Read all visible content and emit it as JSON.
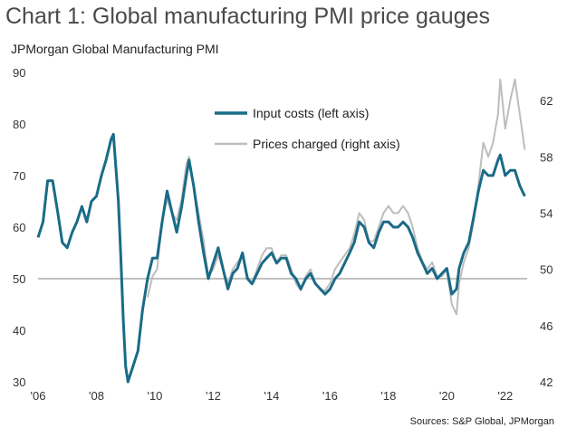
{
  "title": "Chart 1: Global manufacturing PMI price gauges",
  "subtitle": "JPMorgan Global Manufacturing PMI",
  "source": "Sources: S&P Global, JPMorgan",
  "colors": {
    "input": "#1a6b87",
    "prices": "#bdbdbd",
    "ref_line": "#aaaaaa"
  },
  "chart_data": {
    "type": "line",
    "title": "Chart 1: Global manufacturing PMI price gauges",
    "left_axis": {
      "ylim": [
        30,
        90
      ],
      "ticks": [
        "30",
        "40",
        "50",
        "60",
        "70",
        "80",
        "90"
      ]
    },
    "right_axis": {
      "ylim": [
        42,
        64
      ],
      "ticks": [
        "42",
        "46",
        "50",
        "54",
        "58",
        "62"
      ]
    },
    "x_range": [
      2006.0,
      2022.75
    ],
    "x_ticks": [
      {
        "value": 2006,
        "label": "'06"
      },
      {
        "value": 2008,
        "label": "'08"
      },
      {
        "value": 2010,
        "label": "'10"
      },
      {
        "value": 2012,
        "label": "'12"
      },
      {
        "value": 2014,
        "label": "'14"
      },
      {
        "value": 2016,
        "label": "'16"
      },
      {
        "value": 2018,
        "label": "'18"
      },
      {
        "value": 2020,
        "label": "'20"
      },
      {
        "value": 2022,
        "label": "'22"
      }
    ],
    "reference_line": 50,
    "legend_position": "top-right",
    "series": [
      {
        "name": "Input costs (left axis)",
        "axis": "left",
        "points": [
          [
            2006.0,
            58
          ],
          [
            2006.17,
            61
          ],
          [
            2006.33,
            69
          ],
          [
            2006.5,
            69
          ],
          [
            2006.67,
            63
          ],
          [
            2006.83,
            57
          ],
          [
            2007.0,
            56
          ],
          [
            2007.17,
            59
          ],
          [
            2007.33,
            61
          ],
          [
            2007.5,
            64
          ],
          [
            2007.67,
            61
          ],
          [
            2007.83,
            65
          ],
          [
            2008.0,
            66
          ],
          [
            2008.17,
            70
          ],
          [
            2008.33,
            73
          ],
          [
            2008.5,
            77
          ],
          [
            2008.58,
            78
          ],
          [
            2008.75,
            65
          ],
          [
            2008.83,
            55
          ],
          [
            2008.92,
            42
          ],
          [
            2009.0,
            33
          ],
          [
            2009.08,
            30
          ],
          [
            2009.25,
            33
          ],
          [
            2009.42,
            36
          ],
          [
            2009.58,
            44
          ],
          [
            2009.75,
            50
          ],
          [
            2009.92,
            54
          ],
          [
            2010.08,
            54
          ],
          [
            2010.25,
            61
          ],
          [
            2010.42,
            67
          ],
          [
            2010.58,
            63
          ],
          [
            2010.75,
            59
          ],
          [
            2010.92,
            64
          ],
          [
            2011.08,
            70
          ],
          [
            2011.17,
            73
          ],
          [
            2011.33,
            68
          ],
          [
            2011.5,
            61
          ],
          [
            2011.67,
            55
          ],
          [
            2011.83,
            50
          ],
          [
            2012.0,
            53
          ],
          [
            2012.17,
            56
          ],
          [
            2012.33,
            52
          ],
          [
            2012.5,
            48
          ],
          [
            2012.67,
            51
          ],
          [
            2012.83,
            52
          ],
          [
            2013.0,
            55
          ],
          [
            2013.17,
            50
          ],
          [
            2013.33,
            49
          ],
          [
            2013.5,
            51
          ],
          [
            2013.67,
            53
          ],
          [
            2013.83,
            54
          ],
          [
            2014.0,
            55
          ],
          [
            2014.17,
            53
          ],
          [
            2014.33,
            54
          ],
          [
            2014.5,
            54
          ],
          [
            2014.67,
            51
          ],
          [
            2014.83,
            50
          ],
          [
            2015.0,
            48
          ],
          [
            2015.17,
            50
          ],
          [
            2015.33,
            51
          ],
          [
            2015.5,
            49
          ],
          [
            2015.67,
            48
          ],
          [
            2015.83,
            47
          ],
          [
            2016.0,
            48
          ],
          [
            2016.17,
            50
          ],
          [
            2016.33,
            51
          ],
          [
            2016.5,
            53
          ],
          [
            2016.67,
            55
          ],
          [
            2016.83,
            57
          ],
          [
            2017.0,
            61
          ],
          [
            2017.17,
            60
          ],
          [
            2017.33,
            57
          ],
          [
            2017.5,
            56
          ],
          [
            2017.67,
            59
          ],
          [
            2017.83,
            61
          ],
          [
            2018.0,
            61
          ],
          [
            2018.17,
            60
          ],
          [
            2018.33,
            60
          ],
          [
            2018.5,
            61
          ],
          [
            2018.67,
            60
          ],
          [
            2018.83,
            58
          ],
          [
            2019.0,
            55
          ],
          [
            2019.17,
            53
          ],
          [
            2019.33,
            51
          ],
          [
            2019.5,
            52
          ],
          [
            2019.67,
            50
          ],
          [
            2019.83,
            51
          ],
          [
            2020.0,
            52
          ],
          [
            2020.17,
            47
          ],
          [
            2020.33,
            48
          ],
          [
            2020.42,
            52
          ],
          [
            2020.58,
            55
          ],
          [
            2020.75,
            57
          ],
          [
            2020.92,
            62
          ],
          [
            2021.08,
            67
          ],
          [
            2021.25,
            71
          ],
          [
            2021.42,
            70
          ],
          [
            2021.58,
            70
          ],
          [
            2021.75,
            73
          ],
          [
            2021.83,
            74
          ],
          [
            2022.0,
            70
          ],
          [
            2022.17,
            71
          ],
          [
            2022.33,
            71
          ],
          [
            2022.5,
            68
          ],
          [
            2022.67,
            66
          ]
        ]
      },
      {
        "name": "Prices charged (right axis)",
        "axis": "right",
        "points": [
          [
            2009.75,
            48
          ],
          [
            2009.92,
            49.5
          ],
          [
            2010.08,
            50
          ],
          [
            2010.25,
            53.5
          ],
          [
            2010.42,
            55
          ],
          [
            2010.58,
            54
          ],
          [
            2010.75,
            53.5
          ],
          [
            2010.92,
            55
          ],
          [
            2011.08,
            57.5
          ],
          [
            2011.17,
            58
          ],
          [
            2011.33,
            56
          ],
          [
            2011.5,
            54
          ],
          [
            2011.67,
            52
          ],
          [
            2011.83,
            49.5
          ],
          [
            2012.0,
            50
          ],
          [
            2012.17,
            51
          ],
          [
            2012.33,
            50
          ],
          [
            2012.5,
            49
          ],
          [
            2012.67,
            50
          ],
          [
            2012.83,
            50.5
          ],
          [
            2013.0,
            51
          ],
          [
            2013.17,
            49.5
          ],
          [
            2013.33,
            49
          ],
          [
            2013.5,
            50
          ],
          [
            2013.67,
            51
          ],
          [
            2013.83,
            51.5
          ],
          [
            2014.0,
            51.5
          ],
          [
            2014.17,
            50.5
          ],
          [
            2014.33,
            51
          ],
          [
            2014.5,
            51
          ],
          [
            2014.67,
            50
          ],
          [
            2014.83,
            49
          ],
          [
            2015.0,
            48.5
          ],
          [
            2015.17,
            49.5
          ],
          [
            2015.33,
            50
          ],
          [
            2015.5,
            49
          ],
          [
            2015.67,
            48.5
          ],
          [
            2015.83,
            48.5
          ],
          [
            2016.0,
            49
          ],
          [
            2016.17,
            50
          ],
          [
            2016.33,
            50.5
          ],
          [
            2016.5,
            51
          ],
          [
            2016.67,
            51.5
          ],
          [
            2016.83,
            52.5
          ],
          [
            2017.0,
            54
          ],
          [
            2017.17,
            53.5
          ],
          [
            2017.33,
            52
          ],
          [
            2017.5,
            52
          ],
          [
            2017.67,
            53
          ],
          [
            2017.83,
            54
          ],
          [
            2018.0,
            54.5
          ],
          [
            2018.17,
            54
          ],
          [
            2018.33,
            54
          ],
          [
            2018.5,
            54.5
          ],
          [
            2018.67,
            54
          ],
          [
            2018.83,
            53
          ],
          [
            2019.0,
            51.5
          ],
          [
            2019.17,
            50.5
          ],
          [
            2019.33,
            50
          ],
          [
            2019.5,
            50.5
          ],
          [
            2019.67,
            49.5
          ],
          [
            2019.83,
            49.5
          ],
          [
            2020.0,
            50
          ],
          [
            2020.17,
            47.5
          ],
          [
            2020.33,
            46.8
          ],
          [
            2020.42,
            49
          ],
          [
            2020.58,
            50.5
          ],
          [
            2020.75,
            51.5
          ],
          [
            2020.92,
            53.5
          ],
          [
            2021.08,
            56
          ],
          [
            2021.25,
            59
          ],
          [
            2021.42,
            58
          ],
          [
            2021.58,
            59
          ],
          [
            2021.75,
            61
          ],
          [
            2021.83,
            63.5
          ],
          [
            2022.0,
            60
          ],
          [
            2022.17,
            62
          ],
          [
            2022.33,
            63.5
          ],
          [
            2022.5,
            61
          ],
          [
            2022.67,
            58.5
          ]
        ]
      }
    ]
  }
}
